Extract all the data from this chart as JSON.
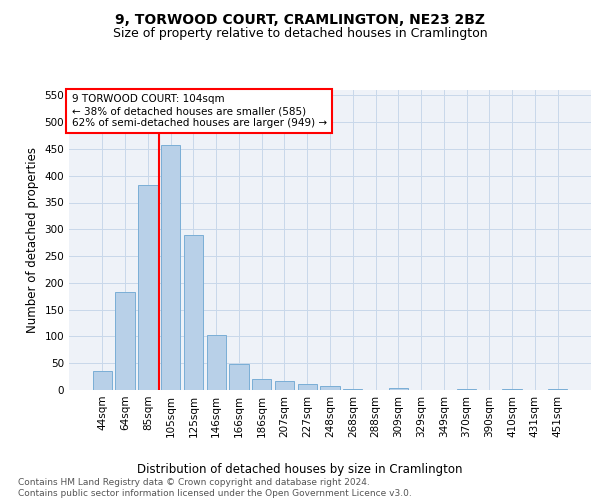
{
  "title": "9, TORWOOD COURT, CRAMLINGTON, NE23 2BZ",
  "subtitle": "Size of property relative to detached houses in Cramlington",
  "xlabel": "Distribution of detached houses by size in Cramlington",
  "ylabel": "Number of detached properties",
  "categories": [
    "44sqm",
    "64sqm",
    "85sqm",
    "105sqm",
    "125sqm",
    "146sqm",
    "166sqm",
    "186sqm",
    "207sqm",
    "227sqm",
    "248sqm",
    "268sqm",
    "288sqm",
    "309sqm",
    "329sqm",
    "349sqm",
    "370sqm",
    "390sqm",
    "410sqm",
    "431sqm",
    "451sqm"
  ],
  "values": [
    35,
    183,
    383,
    457,
    289,
    103,
    48,
    20,
    16,
    12,
    7,
    1,
    0,
    4,
    0,
    0,
    2,
    0,
    1,
    0,
    1
  ],
  "bar_color": "#b8d0e8",
  "bar_edge_color": "#7aaed6",
  "annotation_text": "9 TORWOOD COURT: 104sqm\n← 38% of detached houses are smaller (585)\n62% of semi-detached houses are larger (949) →",
  "annotation_box_color": "white",
  "annotation_box_edge_color": "red",
  "marker_line_color": "red",
  "ylim": [
    0,
    560
  ],
  "yticks": [
    0,
    50,
    100,
    150,
    200,
    250,
    300,
    350,
    400,
    450,
    500,
    550
  ],
  "grid_color": "#c8d8ea",
  "background_color": "#eef2f8",
  "footer_text": "Contains HM Land Registry data © Crown copyright and database right 2024.\nContains public sector information licensed under the Open Government Licence v3.0.",
  "title_fontsize": 10,
  "subtitle_fontsize": 9,
  "xlabel_fontsize": 8.5,
  "ylabel_fontsize": 8.5,
  "tick_fontsize": 7.5,
  "footer_fontsize": 6.5
}
